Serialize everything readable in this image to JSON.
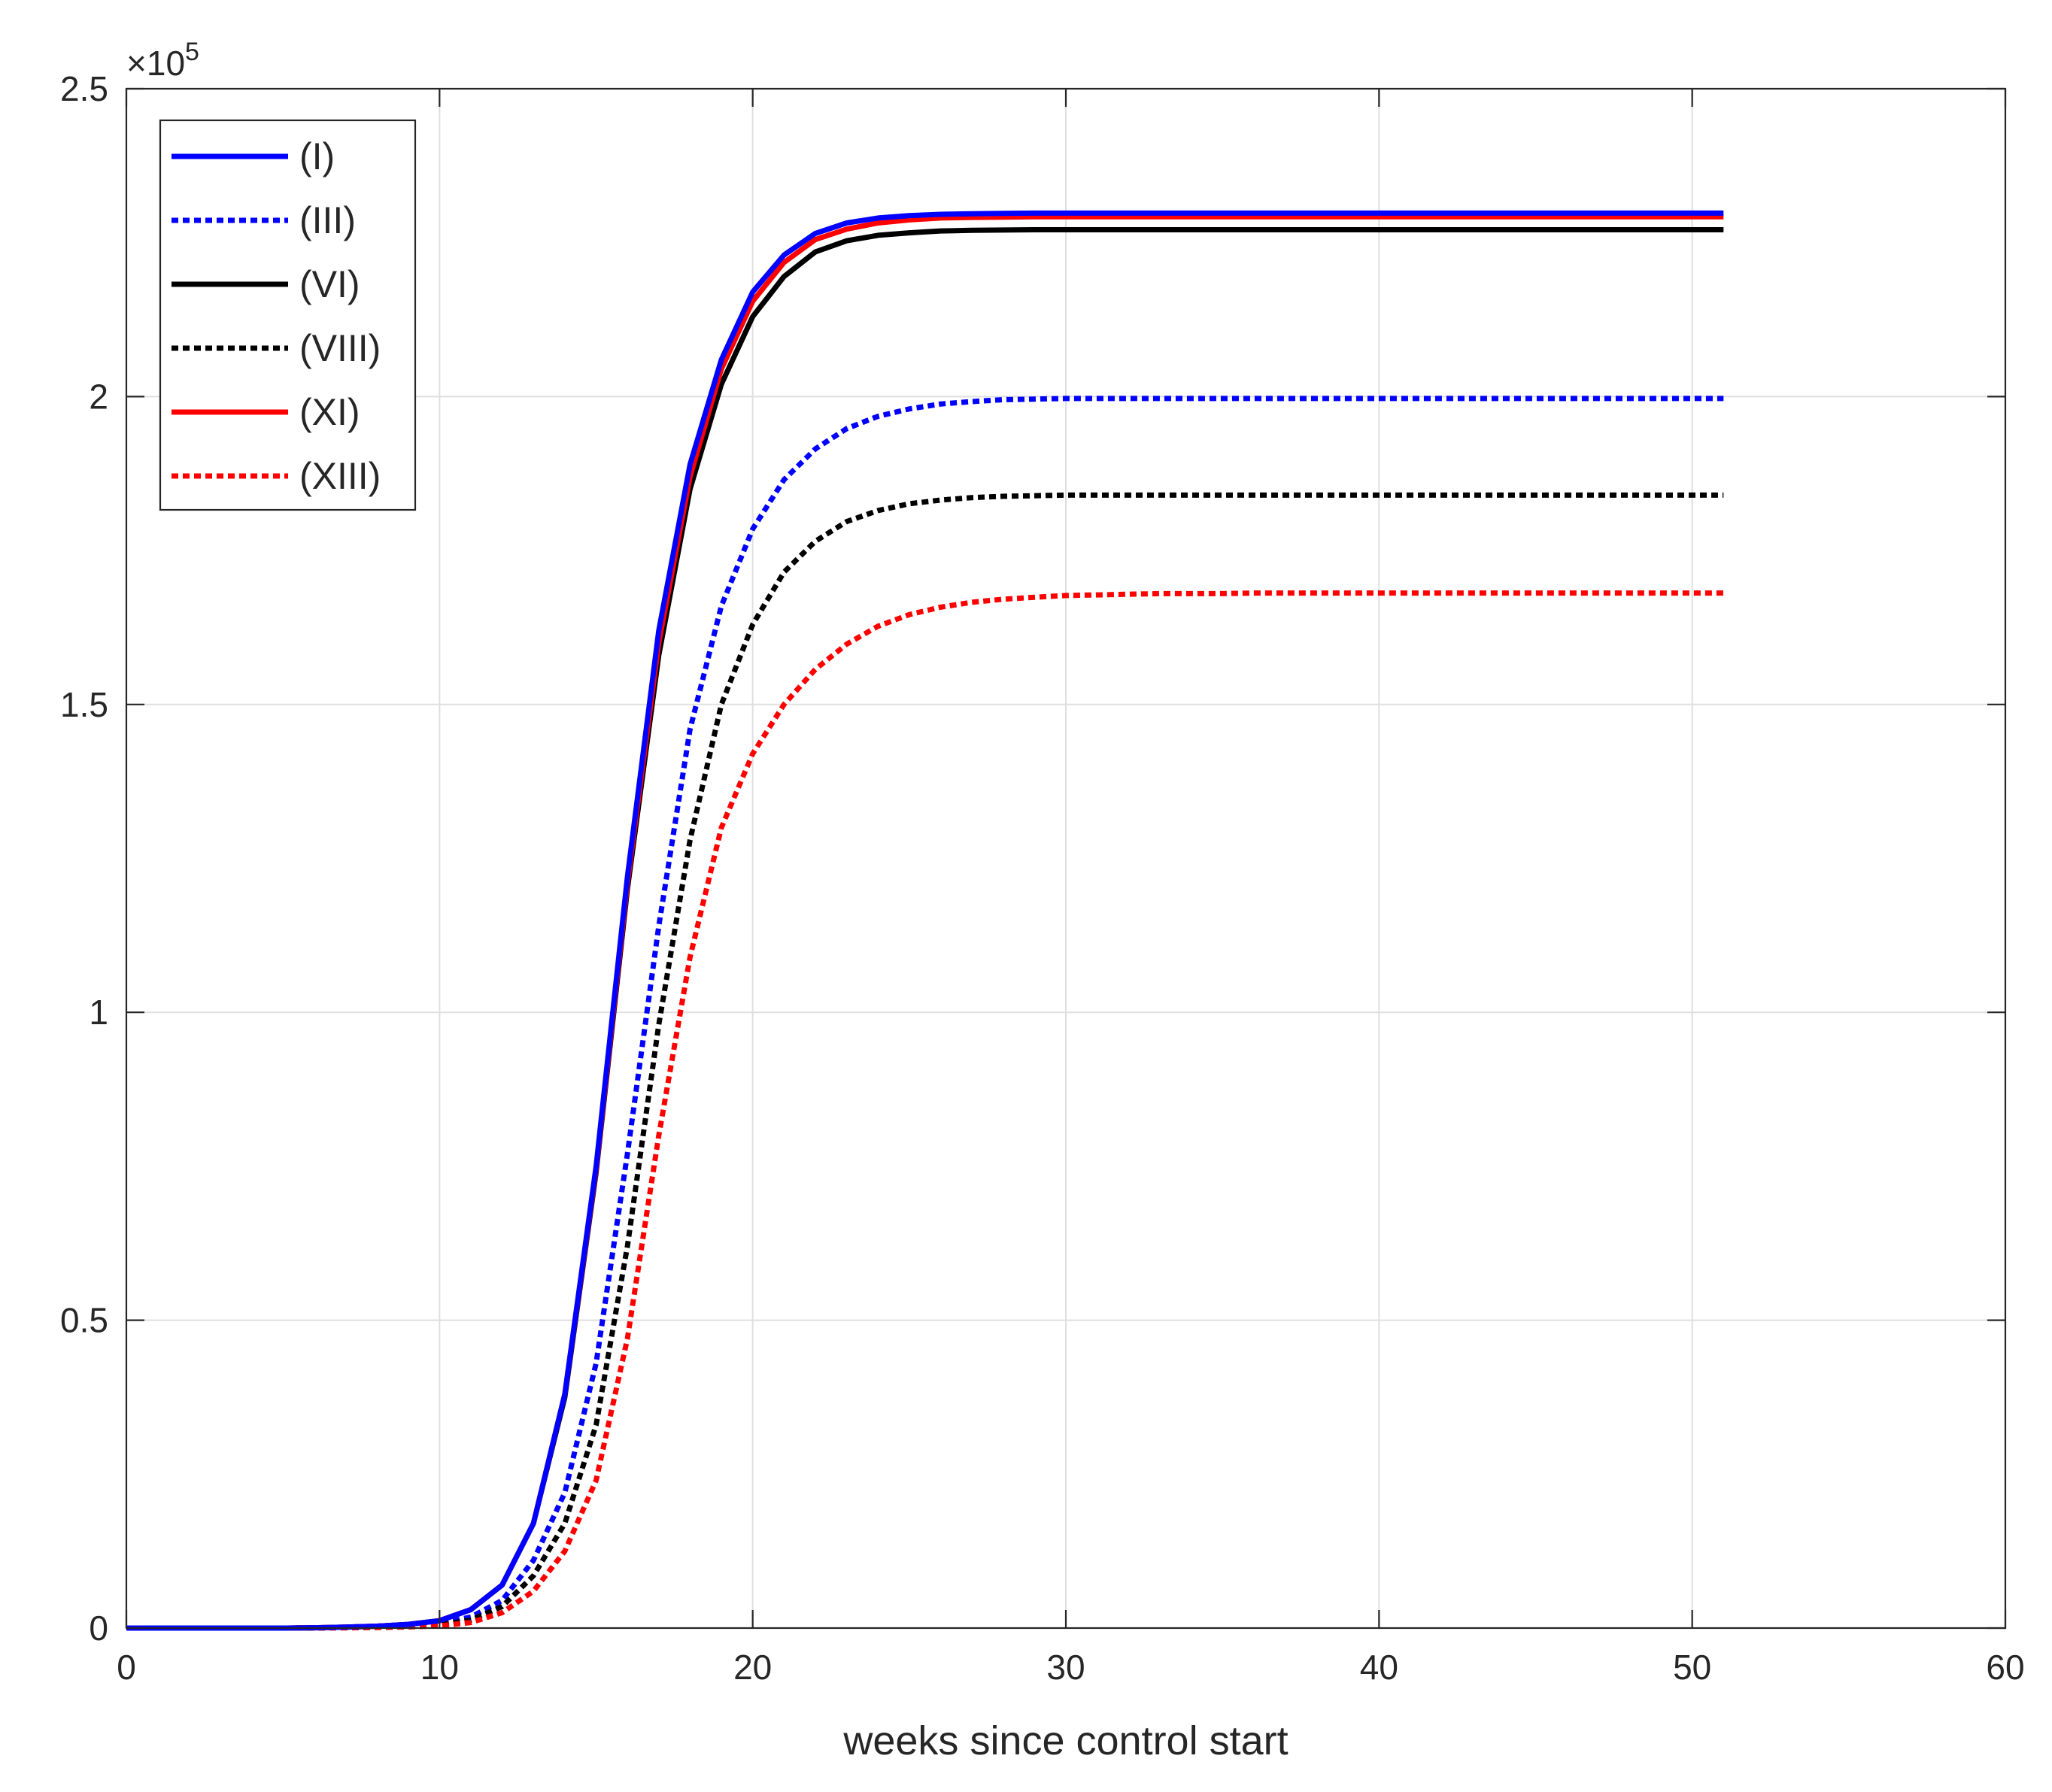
{
  "chart_data": {
    "type": "line",
    "title": "",
    "xlabel": "weeks since control start",
    "ylabel": "",
    "xlim": [
      0,
      60
    ],
    "ylim": [
      0,
      250000
    ],
    "x_ticks": [
      0,
      10,
      20,
      30,
      40,
      50,
      60
    ],
    "x_tick_labels": [
      "0",
      "10",
      "20",
      "30",
      "40",
      "50",
      "60"
    ],
    "y_ticks": [
      0,
      50000,
      100000,
      150000,
      200000,
      250000
    ],
    "y_tick_labels": [
      "0",
      "0.5",
      "1",
      "1.5",
      "2",
      "2.5"
    ],
    "y_exponent_label": "×10",
    "y_exponent_power": "5",
    "grid": true,
    "legend_position": "top-left",
    "x": [
      0,
      1,
      2,
      3,
      4,
      5,
      6,
      7,
      8,
      9,
      10,
      11,
      12,
      13,
      14,
      15,
      16,
      17,
      18,
      19,
      20,
      21,
      22,
      23,
      24,
      25,
      26,
      27,
      28,
      29,
      30,
      31,
      32,
      33,
      34,
      35,
      36,
      37,
      38,
      39,
      40,
      41,
      42,
      43,
      44,
      45,
      46,
      47,
      48,
      49,
      50,
      51
    ],
    "series": [
      {
        "name": "(I)",
        "color": "#0000ff",
        "dash": "solid",
        "values": [
          0,
          0,
          0,
          0,
          0,
          0,
          50,
          150,
          300,
          600,
          1200,
          3000,
          7000,
          17000,
          38000,
          75000,
          122000,
          162000,
          189000,
          206000,
          217000,
          223000,
          226500,
          228200,
          229000,
          229400,
          229600,
          229700,
          229750,
          229800,
          229800,
          229800,
          229800,
          229800,
          229800,
          229800,
          229800,
          229800,
          229800,
          229800,
          229800,
          229800,
          229800,
          229800,
          229800,
          229800,
          229800,
          229800,
          229800,
          229800,
          229800,
          229800
        ]
      },
      {
        "name": "(III)",
        "color": "#0000ff",
        "dash": "dotted",
        "values": [
          0,
          0,
          0,
          0,
          0,
          0,
          30,
          80,
          150,
          300,
          700,
          1800,
          4500,
          11000,
          22000,
          43000,
          77000,
          114000,
          146000,
          166000,
          178500,
          186500,
          191500,
          194800,
          196800,
          198000,
          198800,
          199200,
          199500,
          199600,
          199700,
          199700,
          199700,
          199700,
          199700,
          199700,
          199700,
          199700,
          199700,
          199700,
          199700,
          199700,
          199700,
          199700,
          199700,
          199700,
          199700,
          199700,
          199700,
          199700,
          199700,
          199700
        ]
      },
      {
        "name": "(VI)",
        "color": "#000000",
        "dash": "solid",
        "values": [
          0,
          0,
          0,
          0,
          0,
          0,
          50,
          150,
          300,
          600,
          1200,
          3000,
          7000,
          17000,
          37500,
          74000,
          120000,
          158000,
          185000,
          202000,
          213000,
          219500,
          223500,
          225300,
          226200,
          226600,
          226900,
          227000,
          227050,
          227100,
          227100,
          227100,
          227100,
          227100,
          227100,
          227100,
          227100,
          227100,
          227100,
          227100,
          227100,
          227100,
          227100,
          227100,
          227100,
          227100,
          227100,
          227100,
          227100,
          227100,
          227100,
          227100
        ]
      },
      {
        "name": "(VIII)",
        "color": "#000000",
        "dash": "dotted",
        "values": [
          0,
          0,
          0,
          0,
          0,
          0,
          20,
          60,
          120,
          250,
          500,
          1300,
          3500,
          8500,
          17000,
          33000,
          62000,
          98000,
          128000,
          150000,
          163000,
          171500,
          176500,
          179700,
          181500,
          182600,
          183200,
          183600,
          183800,
          183900,
          184000,
          184000,
          184000,
          184000,
          184000,
          184000,
          184000,
          184000,
          184000,
          184000,
          184000,
          184000,
          184000,
          184000,
          184000,
          184000,
          184000,
          184000,
          184000,
          184000,
          184000,
          184000
        ]
      },
      {
        "name": "(XI)",
        "color": "#ff0000",
        "dash": "solid",
        "values": [
          0,
          0,
          0,
          0,
          0,
          0,
          50,
          150,
          300,
          600,
          1200,
          3000,
          7000,
          17000,
          38000,
          74500,
          121000,
          160000,
          187000,
          204500,
          215500,
          221800,
          225500,
          227200,
          228200,
          228700,
          229000,
          229100,
          229150,
          229200,
          229200,
          229200,
          229200,
          229200,
          229200,
          229200,
          229200,
          229200,
          229200,
          229200,
          229200,
          229200,
          229200,
          229200,
          229200,
          229200,
          229200,
          229200,
          229200,
          229200,
          229200,
          229200
        ]
      },
      {
        "name": "(XIII)",
        "color": "#ff0000",
        "dash": "dotted",
        "values": [
          0,
          0,
          0,
          0,
          0,
          0,
          10,
          40,
          80,
          180,
          350,
          900,
          2500,
          6000,
          12500,
          24000,
          47000,
          80000,
          109000,
          130000,
          142000,
          150000,
          155700,
          159800,
          162700,
          164600,
          165800,
          166600,
          167100,
          167400,
          167700,
          167800,
          167900,
          168000,
          168000,
          168000,
          168100,
          168100,
          168100,
          168100,
          168100,
          168100,
          168100,
          168100,
          168100,
          168100,
          168100,
          168100,
          168100,
          168100,
          168100,
          168100
        ]
      }
    ]
  }
}
